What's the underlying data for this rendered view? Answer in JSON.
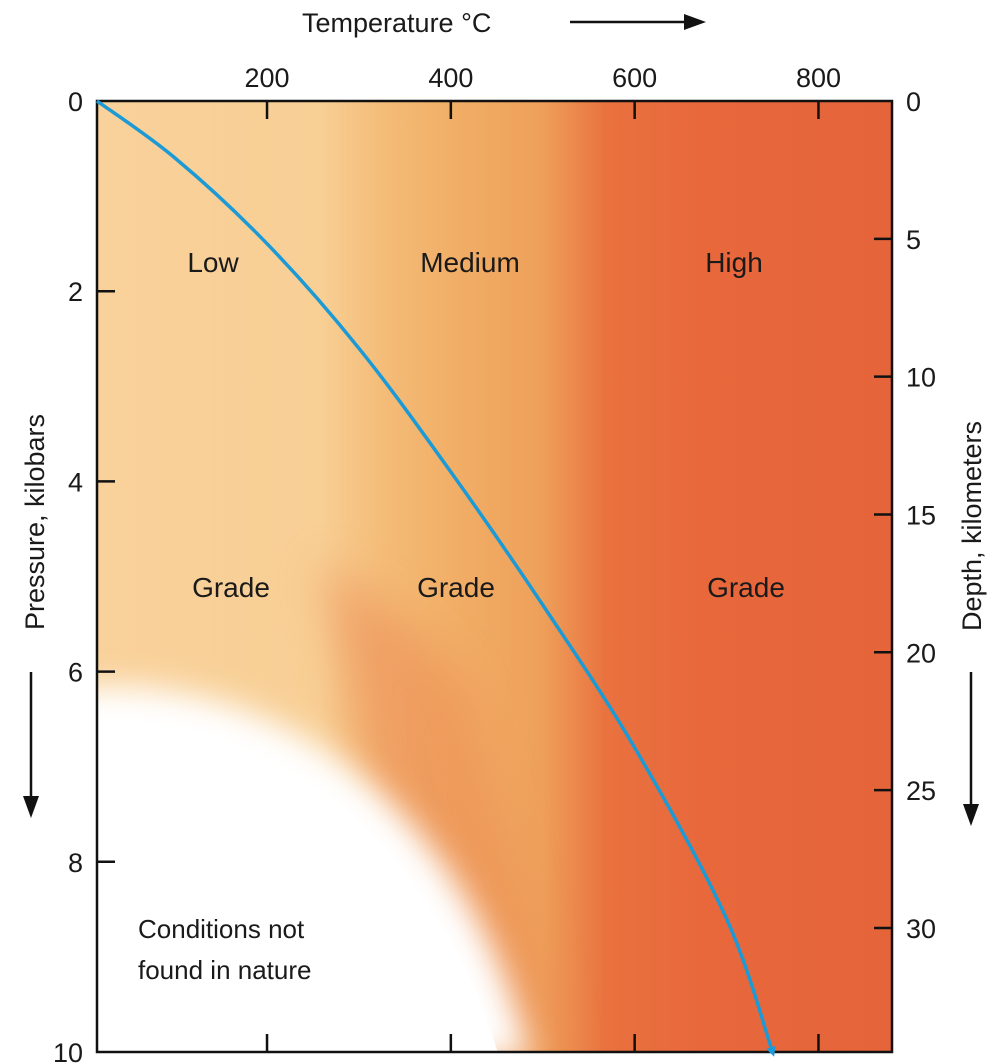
{
  "chart_data": {
    "type": "line",
    "title": "",
    "top_axis": {
      "label": "Temperature °C",
      "ticks": [
        200,
        400,
        600,
        800
      ],
      "range": [
        15,
        880
      ],
      "has_arrow": true,
      "arrow_direction": "right"
    },
    "left_axis": {
      "label": "Pressure, kilobars",
      "ticks": [
        0,
        2,
        4,
        6,
        8,
        10
      ],
      "range": [
        0,
        10
      ],
      "has_arrow": true,
      "arrow_direction": "down"
    },
    "right_axis": {
      "label": "Depth, kilometers",
      "ticks": [
        0,
        5,
        10,
        15,
        20,
        25,
        30
      ],
      "range": [
        0,
        34.5
      ],
      "has_arrow": true,
      "arrow_direction": "down"
    },
    "series": [
      {
        "color": "#1c9ad6",
        "x": [
          15,
          100,
          200,
          300,
          400,
          500,
          600,
          700,
          750
        ],
        "y": [
          0,
          0.6,
          1.5,
          2.6,
          3.9,
          5.3,
          6.8,
          8.6,
          10
        ]
      }
    ],
    "regions": [
      {
        "top_label": "Low",
        "bottom_label": "Grade",
        "color": "#f8cf95"
      },
      {
        "top_label": "Medium",
        "bottom_label": "Grade",
        "color": "#f1ad63"
      },
      {
        "top_label": "High",
        "bottom_label": "Grade",
        "color": "#e8673c"
      }
    ],
    "annotation": {
      "line1": "Conditions not",
      "line2": "found in nature",
      "color": "#ffffff"
    },
    "grid": false
  }
}
